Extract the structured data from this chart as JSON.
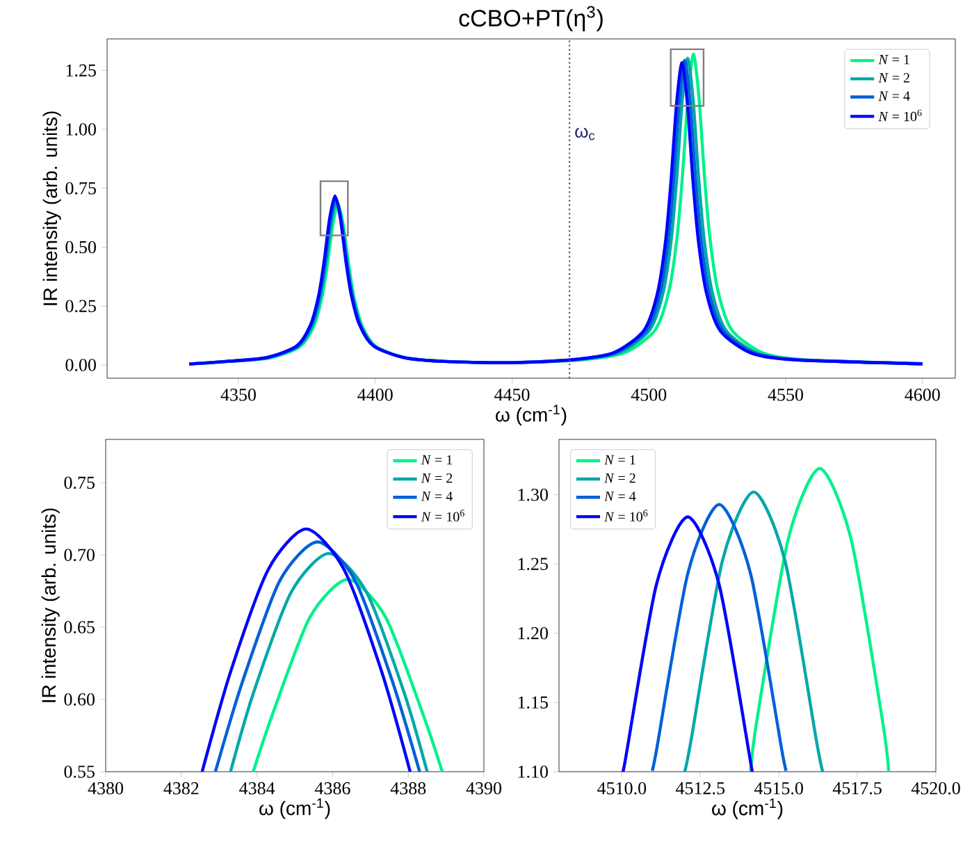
{
  "chart_data": [
    {
      "type": "line",
      "title": "cCBO+PT(η$^{3}$)",
      "xlabel": "ω (cm$^{-1}$)",
      "ylabel": "IR intensity (arb. units)",
      "xlim": [
        4302,
        4612
      ],
      "ylim": [
        -0.056,
        1.384
      ],
      "xticks": [
        4350,
        4400,
        4450,
        4500,
        4550,
        4600
      ],
      "yticks": [
        {
          "value": 0,
          "label": "0.00"
        },
        {
          "value": 0.25,
          "label": "0.25"
        },
        {
          "value": 0.5,
          "label": "0.50"
        },
        {
          "value": 0.75,
          "label": "0.75"
        },
        {
          "value": 1,
          "label": "1.00"
        },
        {
          "value": 1.25,
          "label": "1.25"
        }
      ],
      "legend": "top right",
      "ref_lines": [
        {
          "axis": "x",
          "value": 4471,
          "label": "ω$_{c}$",
          "color": "#555555",
          "line_style": "dotted"
        }
      ],
      "series": [
        {
          "name": "*N* = 1",
          "color": "#00f28a",
          "x": [
            4332,
            4346.4,
            4361.4,
            4372.4,
            4377.4,
            4380.4,
            4382.4,
            4384.4,
            4386.4,
            4388.4,
            4390.4,
            4392.4,
            4395.4,
            4400.4,
            4411.4,
            4426.4,
            4450,
            4476.3,
            4491.3,
            4502.3,
            4507.3,
            4510.3,
            4512.3,
            4514.3,
            4516.3,
            4518.3,
            4520.3,
            4522.3,
            4525.3,
            4530.3,
            4541.3,
            4556.3,
            4600
          ],
          "values": [
            0.004,
            0.015,
            0.03,
            0.077,
            0.161,
            0.28,
            0.417,
            0.589,
            0.683,
            0.589,
            0.417,
            0.28,
            0.161,
            0.077,
            0.03,
            0.015,
            0.01,
            0.023,
            0.053,
            0.149,
            0.312,
            0.541,
            0.805,
            1.138,
            1.32,
            1.138,
            0.805,
            0.541,
            0.312,
            0.149,
            0.053,
            0.023,
            0.005
          ]
        },
        {
          "name": "*N* = 2",
          "color": "#00a8a8",
          "x": [
            4332,
            4345.9,
            4360.9,
            4371.9,
            4376.9,
            4379.9,
            4381.9,
            4383.9,
            4385.9,
            4387.9,
            4389.9,
            4391.9,
            4394.9,
            4399.9,
            4410.9,
            4425.9,
            4450,
            4474.2,
            4489.2,
            4500.2,
            4505.2,
            4508.2,
            4510.2,
            4512.2,
            4514.2,
            4516.2,
            4518.2,
            4520.2,
            4523.2,
            4528.2,
            4539.2,
            4554.2,
            4600
          ],
          "values": [
            0.004,
            0.015,
            0.031,
            0.079,
            0.165,
            0.287,
            0.428,
            0.604,
            0.701,
            0.604,
            0.428,
            0.287,
            0.165,
            0.079,
            0.031,
            0.015,
            0.01,
            0.023,
            0.053,
            0.147,
            0.307,
            0.534,
            0.794,
            1.122,
            1.302,
            1.122,
            0.794,
            0.534,
            0.307,
            0.147,
            0.053,
            0.023,
            0.005
          ]
        },
        {
          "name": "*N* = 4",
          "color": "#0060d8",
          "x": [
            4332,
            4345.6,
            4360.6,
            4371.6,
            4376.6,
            4379.6,
            4381.6,
            4383.6,
            4385.6,
            4387.6,
            4389.6,
            4391.6,
            4394.6,
            4399.6,
            4410.6,
            4425.6,
            4450,
            4473.1,
            4488.1,
            4499.1,
            4504.1,
            4507.1,
            4509.1,
            4511.1,
            4513.1,
            4515.1,
            4517.1,
            4519.1,
            4522.1,
            4527.1,
            4538.1,
            4553.1,
            4600
          ],
          "values": [
            0.004,
            0.015,
            0.031,
            0.08,
            0.167,
            0.291,
            0.432,
            0.611,
            0.709,
            0.611,
            0.432,
            0.291,
            0.167,
            0.08,
            0.031,
            0.015,
            0.01,
            0.023,
            0.053,
            0.146,
            0.305,
            0.53,
            0.789,
            1.115,
            1.293,
            1.115,
            0.789,
            0.53,
            0.305,
            0.146,
            0.053,
            0.023,
            0.005
          ]
        },
        {
          "name": "*N* = 10$^{6}$",
          "color": "#0000ff",
          "x": [
            4332,
            4345.3,
            4360.3,
            4371.3,
            4376.3,
            4379.3,
            4381.3,
            4383.3,
            4385.3,
            4387.3,
            4389.3,
            4391.3,
            4394.3,
            4399.3,
            4410.3,
            4425.3,
            4450,
            4472.1,
            4487.1,
            4498.1,
            4503.1,
            4506.1,
            4508.1,
            4510.1,
            4512.1,
            4514.1,
            4516.1,
            4518.1,
            4521.1,
            4526.1,
            4537.1,
            4552.1,
            4600
          ],
          "values": [
            0.004,
            0.015,
            0.032,
            0.081,
            0.169,
            0.294,
            0.438,
            0.619,
            0.718,
            0.619,
            0.438,
            0.294,
            0.169,
            0.081,
            0.032,
            0.015,
            0.01,
            0.023,
            0.052,
            0.145,
            0.303,
            0.526,
            0.783,
            1.107,
            1.284,
            1.107,
            0.783,
            0.526,
            0.303,
            0.145,
            0.052,
            0.023,
            0.005
          ]
        }
      ]
    },
    {
      "type": "line",
      "xlabel": "ω (cm$^{-1}$)",
      "ylabel": "IR intensity (arb. units)",
      "xlim": [
        4380,
        4390
      ],
      "ylim": [
        0.55,
        0.78
      ],
      "xticks": [
        4380,
        4382,
        4384,
        4386,
        4388,
        4390
      ],
      "yticks": [
        0.55,
        {
          "value": 0.6,
          "label": "0.60"
        },
        0.65,
        {
          "value": 0.7,
          "label": "0.70"
        },
        0.75
      ],
      "legend": "top right",
      "series": [
        {
          "name": "*N* = 1",
          "color": "#00f28a",
          "x": [
            4383.9,
            4384.4,
            4385.4,
            4386.4,
            4387.4,
            4388.4,
            4388.9
          ],
          "values": [
            0.55,
            0.589,
            0.657,
            0.683,
            0.657,
            0.589,
            0.55
          ]
        },
        {
          "name": "*N* = 2",
          "color": "#00a8a8",
          "x": [
            4383.3,
            4383.9,
            4384.9,
            4385.9,
            4386.9,
            4387.9,
            4388.5
          ],
          "values": [
            0.55,
            0.604,
            0.674,
            0.701,
            0.674,
            0.604,
            0.55
          ]
        },
        {
          "name": "*N* = 4",
          "color": "#0060d8",
          "x": [
            4382.9,
            4383.6,
            4384.6,
            4385.6,
            4386.6,
            4387.6,
            4388.3
          ],
          "values": [
            0.55,
            0.611,
            0.682,
            0.709,
            0.682,
            0.611,
            0.55
          ]
        },
        {
          "name": "*N* = 10$^{6}$",
          "color": "#0000ff",
          "x": [
            4382.55,
            4383.3,
            4384.3,
            4385.3,
            4386.3,
            4387.3,
            4388.05
          ],
          "values": [
            0.55,
            0.619,
            0.69,
            0.718,
            0.69,
            0.619,
            0.55
          ]
        }
      ]
    },
    {
      "type": "line",
      "xlabel": "ω (cm$^{-1}$)",
      "xlim": [
        4508,
        4520
      ],
      "ylim": [
        1.1,
        1.34
      ],
      "xticks": [
        {
          "value": 4510,
          "label": "4510.0"
        },
        4512.5,
        {
          "value": 4515,
          "label": "4515.0"
        },
        4517.5,
        {
          "value": 4520,
          "label": "4520.0"
        }
      ],
      "yticks": [
        {
          "value": 1.1,
          "label": "1.10"
        },
        1.15,
        {
          "value": 1.2,
          "label": "1.20"
        },
        1.25,
        {
          "value": 1.3,
          "label": "1.30"
        }
      ],
      "legend": "top left",
      "series": [
        {
          "name": "*N* = 1",
          "color": "#00f28a",
          "x": [
            4514.1,
            4514.3,
            4515.3,
            4516.3,
            4517.3,
            4518.3,
            4518.5
          ],
          "values": [
            1.1,
            1.137,
            1.268,
            1.319,
            1.268,
            1.137,
            1.1
          ]
        },
        {
          "name": "*N* = 2",
          "color": "#00a8a8",
          "x": [
            4512.0,
            4512.2,
            4513.2,
            4514.2,
            4515.2,
            4516.2,
            4516.4
          ],
          "values": [
            1.1,
            1.122,
            1.252,
            1.302,
            1.252,
            1.122,
            1.1
          ]
        },
        {
          "name": "*N* = 4",
          "color": "#0060d8",
          "x": [
            4510.95,
            4511.1,
            4512.1,
            4513.1,
            4514.1,
            4515.1,
            4515.25
          ],
          "values": [
            1.1,
            1.115,
            1.243,
            1.293,
            1.243,
            1.115,
            1.1
          ]
        },
        {
          "name": "*N* = 10$^{6}$",
          "color": "#0000ff",
          "x": [
            4510.0,
            4510.1,
            4511.1,
            4512.1,
            4513.1,
            4514.1,
            4514.15
          ],
          "values": [
            1.1,
            1.107,
            1.235,
            1.284,
            1.235,
            1.107,
            1.1
          ]
        }
      ]
    }
  ]
}
